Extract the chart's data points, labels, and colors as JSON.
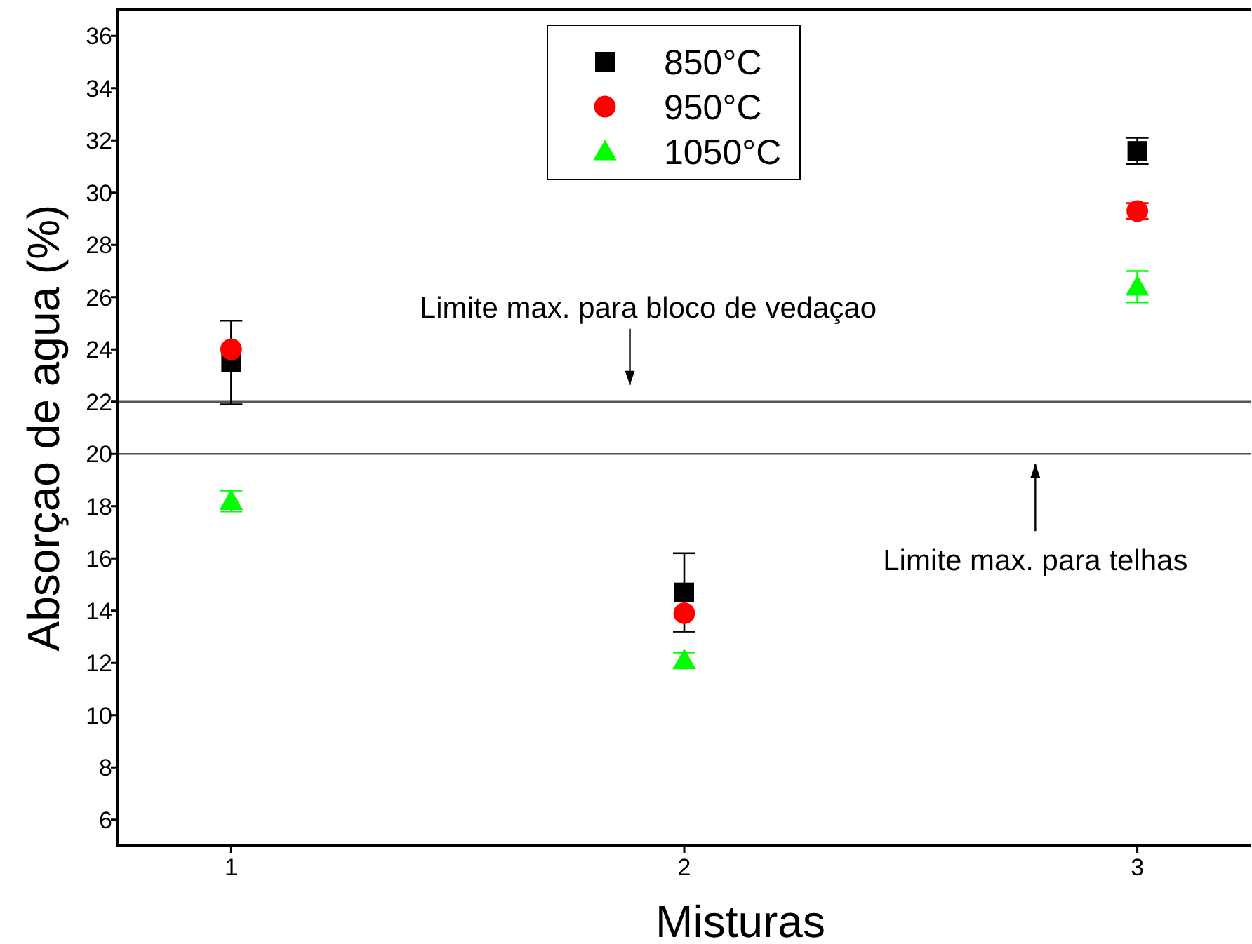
{
  "chart_data": {
    "type": "scatter",
    "xlabel": "Misturas",
    "ylabel": "Absorçao de agua (%)",
    "x": [
      1,
      2,
      3
    ],
    "xlim": [
      0.75,
      3.25
    ],
    "xticks": [
      1,
      2,
      3
    ],
    "ylim": [
      5,
      37
    ],
    "yticks": [
      6,
      8,
      10,
      12,
      14,
      16,
      18,
      20,
      22,
      24,
      26,
      28,
      30,
      32,
      34,
      36
    ],
    "grid": false,
    "legend": "top",
    "series": [
      {
        "name": "850°C",
        "color": "#000000",
        "marker": "square",
        "values": [
          23.5,
          14.7,
          31.6
        ],
        "errors": [
          1.6,
          1.5,
          0.5
        ]
      },
      {
        "name": "950°C",
        "color": "#ff0000",
        "marker": "circle",
        "values": [
          24.0,
          13.9,
          29.3
        ],
        "errors": [
          null,
          null,
          0.3
        ]
      },
      {
        "name": "1050°C",
        "color": "#00ff00",
        "marker": "triangle",
        "values": [
          18.2,
          12.1,
          26.4
        ],
        "errors": [
          0.4,
          0.3,
          0.6
        ]
      }
    ],
    "ref_lines": [
      {
        "axis": "y",
        "value": 22,
        "color": "#555555",
        "label": "Limite max. para bloco de vedaçao"
      },
      {
        "axis": "y",
        "value": 20,
        "color": "#555555",
        "label": "Limite max. para telhas"
      }
    ]
  }
}
